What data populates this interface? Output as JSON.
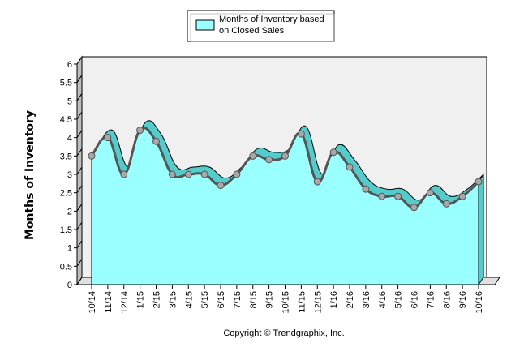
{
  "chart_data": {
    "type": "area",
    "ylabel": "Months of Inventory",
    "ylim": [
      0,
      6
    ],
    "yticks": [
      "0",
      "0.5",
      "1",
      "1.5",
      "2",
      "2.5",
      "3",
      "3.5",
      "4",
      "4.5",
      "5",
      "5.5",
      "6"
    ],
    "categories": [
      "10/14",
      "11/14",
      "12/14",
      "1/15",
      "2/15",
      "3/15",
      "4/15",
      "5/15",
      "6/15",
      "7/15",
      "8/15",
      "9/15",
      "10/15",
      "11/15",
      "12/15",
      "1/16",
      "2/16",
      "3/16",
      "4/16",
      "5/16",
      "6/16",
      "7/16",
      "8/16",
      "9/16",
      "10/16"
    ],
    "series": [
      {
        "name": "Months of Inventory based on Closed Sales",
        "values": [
          3.5,
          4.0,
          3.0,
          4.2,
          3.9,
          3.0,
          3.0,
          3.0,
          2.7,
          3.0,
          3.5,
          3.4,
          3.5,
          4.1,
          2.8,
          3.6,
          3.2,
          2.6,
          2.4,
          2.4,
          2.1,
          2.5,
          2.2,
          2.4,
          2.8
        ]
      }
    ],
    "legend": {
      "position": "top-center",
      "lines": [
        "Months of Inventory based",
        "on Closed Sales"
      ]
    },
    "grid": false,
    "colors": {
      "fill": "#99ffff",
      "fill_side": "#55cccc",
      "line": "#555555",
      "marker": "#a8a8a8",
      "wall": "#f0f0f0"
    }
  },
  "footer": {
    "copyright": "Copyright © Trendgraphix, Inc."
  }
}
